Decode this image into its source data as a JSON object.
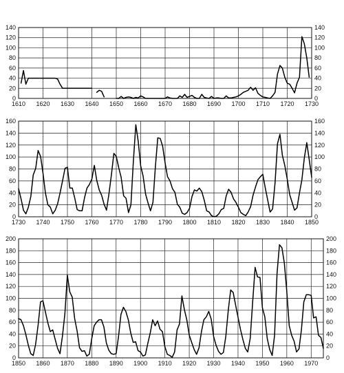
{
  "chart_data": [
    {
      "type": "line",
      "xlim": [
        1610,
        1730
      ],
      "ylim": [
        0,
        140
      ],
      "x_ticks": [
        1610,
        1620,
        1630,
        1640,
        1650,
        1660,
        1670,
        1680,
        1690,
        1700,
        1710,
        1720,
        1730
      ],
      "y_ticks": [
        0,
        20,
        40,
        60,
        80,
        100,
        120,
        140
      ],
      "y_tick_labels_both_sides": true,
      "grid": true,
      "series": [
        {
          "x": [
            1611,
            1612,
            1613,
            1614,
            1620,
            1625,
            1626,
            1627,
            1628
          ],
          "values": [
            30,
            55,
            28,
            40,
            40,
            40,
            38,
            28,
            20
          ]
        },
        {
          "x": [
            1628,
            1640
          ],
          "values": [
            20,
            20
          ]
        },
        {
          "x": [
            1642,
            1643,
            1644,
            1645
          ],
          "values": [
            12,
            16,
            14,
            3
          ]
        },
        {
          "x": [
            1650,
            1651,
            1652,
            1653,
            1654,
            1655,
            1656,
            1657,
            1658,
            1659,
            1660,
            1661,
            1662,
            1663,
            1664,
            1665,
            1666,
            1667,
            1668,
            1669,
            1670,
            1671,
            1672,
            1673,
            1674,
            1675,
            1676,
            1677,
            1678,
            1679,
            1680,
            1681,
            1682,
            1683,
            1684,
            1685,
            1686,
            1687,
            1688,
            1689,
            1690,
            1691,
            1692,
            1693,
            1694,
            1695,
            1696,
            1697,
            1698,
            1699,
            1700,
            1701,
            1702,
            1703,
            1704,
            1705,
            1706,
            1707,
            1708,
            1709,
            1710,
            1711,
            1712,
            1713,
            1714,
            1715,
            1716,
            1717,
            1718,
            1719,
            1720,
            1721,
            1722,
            1723,
            1724,
            1725,
            1726,
            1727,
            1728,
            1729
          ],
          "values": [
            0,
            0,
            4,
            0,
            2,
            3,
            2,
            0,
            2,
            1,
            5,
            3,
            0,
            0,
            0,
            0,
            0,
            0,
            0,
            0,
            0,
            3,
            1,
            0,
            0,
            0,
            5,
            2,
            8,
            2,
            4,
            6,
            2,
            0,
            0,
            8,
            2,
            1,
            0,
            4,
            0,
            1,
            1,
            0,
            0,
            5,
            1,
            1,
            2,
            3,
            5,
            8,
            12,
            14,
            16,
            22,
            16,
            21,
            10,
            6,
            3,
            2,
            1,
            0,
            5,
            12,
            48,
            65,
            60,
            42,
            30,
            28,
            20,
            11,
            30,
            42,
            122,
            108,
            80,
            42
          ]
        }
      ]
    },
    {
      "type": "line",
      "xlim": [
        1730,
        1850
      ],
      "ylim": [
        0,
        160
      ],
      "x_ticks": [
        1730,
        1740,
        1750,
        1760,
        1770,
        1780,
        1790,
        1800,
        1810,
        1820,
        1830,
        1840,
        1850
      ],
      "y_ticks": [
        0,
        20,
        40,
        60,
        80,
        100,
        120,
        140,
        160
      ],
      "y_tick_labels_both_sides": true,
      "grid": true,
      "series": [
        {
          "x": [
            1730,
            1731,
            1732,
            1733,
            1734,
            1735,
            1736,
            1737,
            1738,
            1739,
            1740,
            1741,
            1742,
            1743,
            1744,
            1745,
            1746,
            1747,
            1748,
            1749,
            1750,
            1751,
            1752,
            1753,
            1754,
            1755,
            1756,
            1757,
            1758,
            1759,
            1760,
            1761,
            1762,
            1763,
            1764,
            1765,
            1766,
            1767,
            1768,
            1769,
            1770,
            1771,
            1772,
            1773,
            1774,
            1775,
            1776,
            1777,
            1778,
            1779,
            1780,
            1781,
            1782,
            1783,
            1784,
            1785,
            1786,
            1787,
            1788,
            1789,
            1790,
            1791,
            1792,
            1793,
            1794,
            1795,
            1796,
            1797,
            1798,
            1799,
            1800,
            1801,
            1802,
            1803,
            1804,
            1805,
            1806,
            1807,
            1808,
            1809,
            1810,
            1811,
            1812,
            1813,
            1814,
            1815,
            1816,
            1817,
            1818,
            1819,
            1820,
            1821,
            1822,
            1823,
            1824,
            1825,
            1826,
            1827,
            1828,
            1829,
            1830,
            1831,
            1832,
            1833,
            1834,
            1835,
            1836,
            1837,
            1838,
            1839,
            1840,
            1841,
            1842,
            1843,
            1844,
            1845,
            1846,
            1847,
            1848,
            1849,
            1850
          ],
          "values": [
            47,
            30,
            11,
            5,
            16,
            34,
            70,
            81,
            111,
            101,
            73,
            40,
            20,
            16,
            5,
            11,
            22,
            40,
            60,
            81,
            83,
            48,
            48,
            31,
            12,
            10,
            10,
            32,
            48,
            54,
            63,
            86,
            61,
            45,
            36,
            21,
            11,
            38,
            70,
            106,
            101,
            82,
            66,
            35,
            31,
            7,
            20,
            92,
            154,
            126,
            85,
            68,
            38,
            23,
            10,
            24,
            83,
            132,
            131,
            118,
            90,
            67,
            60,
            47,
            41,
            21,
            16,
            6,
            4,
            7,
            14,
            34,
            45,
            43,
            48,
            42,
            28,
            10,
            8,
            2,
            0,
            1,
            5,
            12,
            14,
            35,
            46,
            41,
            30,
            24,
            16,
            7,
            4,
            2,
            8,
            17,
            36,
            50,
            62,
            67,
            71,
            48,
            28,
            8,
            13,
            57,
            122,
            138,
            103,
            86,
            63,
            37,
            24,
            11,
            15,
            40,
            62,
            98,
            124,
            96,
            66
          ]
        }
      ]
    },
    {
      "type": "line",
      "xlim": [
        1850,
        1975
      ],
      "ylim": [
        0,
        200
      ],
      "x_ticks": [
        1850,
        1860,
        1870,
        1880,
        1890,
        1900,
        1910,
        1920,
        1930,
        1940,
        1950,
        1960,
        1970
      ],
      "y_ticks": [
        0,
        20,
        40,
        60,
        80,
        100,
        120,
        140,
        160,
        180,
        200
      ],
      "y_tick_labels_both_sides": true,
      "grid": true,
      "series": [
        {
          "x": [
            1850,
            1851,
            1852,
            1853,
            1854,
            1855,
            1856,
            1857,
            1858,
            1859,
            1860,
            1861,
            1862,
            1863,
            1864,
            1865,
            1866,
            1867,
            1868,
            1869,
            1870,
            1871,
            1872,
            1873,
            1874,
            1875,
            1876,
            1877,
            1878,
            1879,
            1880,
            1881,
            1882,
            1883,
            1884,
            1885,
            1886,
            1887,
            1888,
            1889,
            1890,
            1891,
            1892,
            1893,
            1894,
            1895,
            1896,
            1897,
            1898,
            1899,
            1900,
            1901,
            1902,
            1903,
            1904,
            1905,
            1906,
            1907,
            1908,
            1909,
            1910,
            1911,
            1912,
            1913,
            1914,
            1915,
            1916,
            1917,
            1918,
            1919,
            1920,
            1921,
            1922,
            1923,
            1924,
            1925,
            1926,
            1927,
            1928,
            1929,
            1930,
            1931,
            1932,
            1933,
            1934,
            1935,
            1936,
            1937,
            1938,
            1939,
            1940,
            1941,
            1942,
            1943,
            1944,
            1945,
            1946,
            1947,
            1948,
            1949,
            1950,
            1951,
            1952,
            1953,
            1954,
            1955,
            1956,
            1957,
            1958,
            1959,
            1960,
            1961,
            1962,
            1963,
            1964,
            1965,
            1966,
            1967,
            1968,
            1969,
            1970,
            1971,
            1972,
            1973,
            1974,
            1975
          ],
          "values": [
            66,
            64,
            54,
            39,
            21,
            7,
            4,
            23,
            55,
            94,
            96,
            77,
            59,
            44,
            47,
            31,
            16,
            7,
            37,
            74,
            139,
            111,
            102,
            66,
            45,
            17,
            11,
            12,
            3,
            6,
            32,
            54,
            60,
            64,
            64,
            52,
            25,
            13,
            7,
            6,
            7,
            36,
            73,
            85,
            78,
            64,
            42,
            26,
            27,
            12,
            10,
            3,
            5,
            24,
            42,
            64,
            54,
            62,
            48,
            44,
            19,
            6,
            4,
            1,
            10,
            47,
            57,
            104,
            81,
            64,
            38,
            26,
            14,
            6,
            17,
            44,
            64,
            69,
            78,
            65,
            36,
            21,
            11,
            6,
            9,
            36,
            80,
            114,
            110,
            89,
            68,
            48,
            31,
            16,
            10,
            33,
            93,
            152,
            136,
            135,
            84,
            69,
            32,
            14,
            4,
            38,
            142,
            190,
            185,
            159,
            112,
            54,
            38,
            28,
            10,
            15,
            47,
            94,
            106,
            106,
            105,
            67,
            69,
            38,
            34,
            16
          ]
        }
      ]
    }
  ]
}
